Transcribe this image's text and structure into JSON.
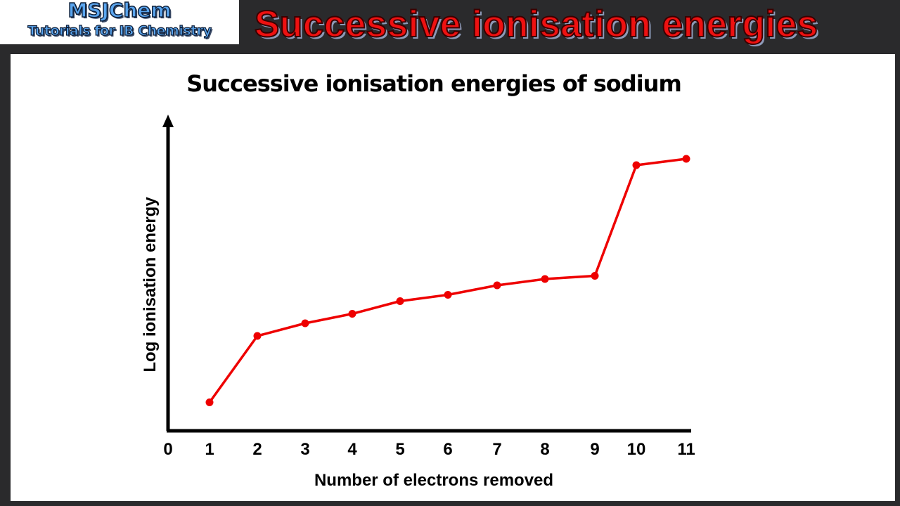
{
  "header": {
    "logo_line1": "MSJChem",
    "logo_line2": "Tutorials for IB Chemistry",
    "banner_title": "Successive ionisation energies"
  },
  "colors": {
    "frame": "#2a2a2c",
    "series": "#ee0000",
    "banner_text": "#ee1111",
    "logo_text": "#5aa5ee"
  },
  "chart_data": {
    "type": "line",
    "title": "Successive ionisation energies of sodium",
    "xlabel": "Number of electrons removed",
    "ylabel": "Log ionisation energy",
    "x_ticks": [
      "0",
      "1",
      "2",
      "3",
      "4",
      "5",
      "6",
      "7",
      "8",
      "9",
      "10",
      "11"
    ],
    "x": [
      1,
      2,
      3,
      4,
      5,
      6,
      7,
      8,
      9,
      10,
      11
    ],
    "series": [
      {
        "name": "Sodium",
        "values": [
          0.09,
          0.3,
          0.34,
          0.37,
          0.41,
          0.43,
          0.46,
          0.48,
          0.49,
          0.84,
          0.86
        ],
        "note": "relative heights (0 = x-axis, 1 = top of y-axis); y-axis has no numeric ticks"
      }
    ],
    "grid": false,
    "legend": null,
    "y_ticks": []
  }
}
